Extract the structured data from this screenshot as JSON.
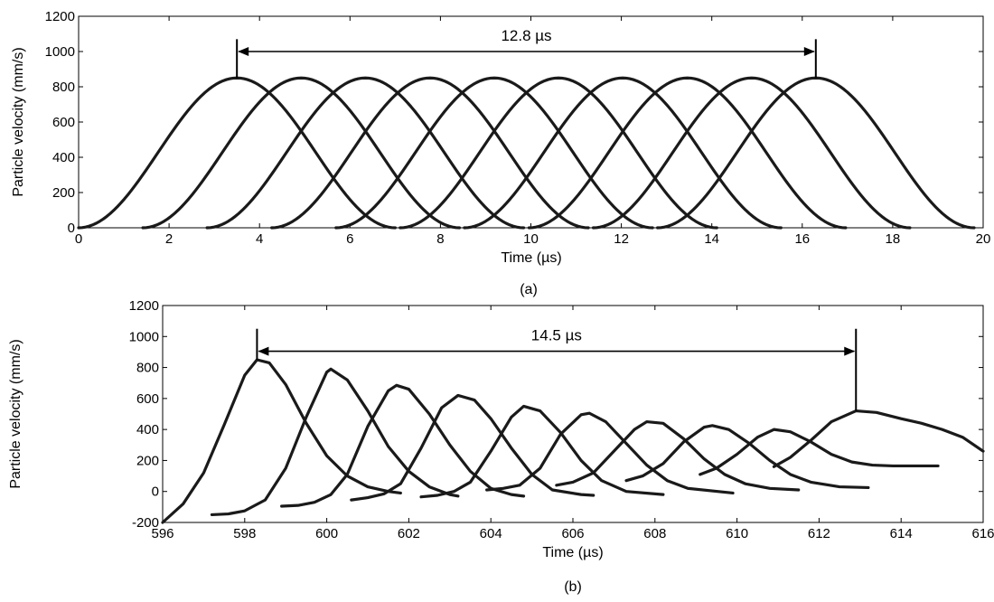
{
  "chart_data": [
    {
      "type": "line",
      "caption": "(a)",
      "xlabel": "Time (µs)",
      "ylabel": "Particle velocity (mm/s)",
      "xlim": [
        0,
        20
      ],
      "ylim": [
        0,
        1200
      ],
      "xticks": [
        0,
        2,
        4,
        6,
        8,
        10,
        12,
        14,
        16,
        18,
        20
      ],
      "yticks": [
        0,
        200,
        400,
        600,
        800,
        1000,
        1200
      ],
      "grid": false,
      "pulse_shape": "hann",
      "series": [
        {
          "peak_time": 3.5,
          "peak_value": 850,
          "start": 0.0,
          "end": 7.0
        },
        {
          "peak_time": 4.92,
          "peak_value": 850,
          "start": 1.42,
          "end": 8.42
        },
        {
          "peak_time": 6.34,
          "peak_value": 850,
          "start": 2.84,
          "end": 9.84
        },
        {
          "peak_time": 7.77,
          "peak_value": 850,
          "start": 4.27,
          "end": 11.27
        },
        {
          "peak_time": 9.19,
          "peak_value": 850,
          "start": 5.69,
          "end": 12.69
        },
        {
          "peak_time": 10.61,
          "peak_value": 850,
          "start": 7.11,
          "end": 14.11
        },
        {
          "peak_time": 12.03,
          "peak_value": 850,
          "start": 8.53,
          "end": 15.53
        },
        {
          "peak_time": 13.46,
          "peak_value": 850,
          "start": 9.96,
          "end": 16.96
        },
        {
          "peak_time": 14.88,
          "peak_value": 850,
          "start": 11.38,
          "end": 18.38
        },
        {
          "peak_time": 16.3,
          "peak_value": 850,
          "start": 12.8,
          "end": 19.8
        }
      ],
      "annotation": {
        "text": "12.8 µs",
        "from": 3.5,
        "to": 16.3,
        "y": 1000,
        "tick_top": 1070
      }
    },
    {
      "type": "line",
      "caption": "(b)",
      "xlabel": "Time (µs)",
      "ylabel": "Particle velocity (mm/s)",
      "xlim": [
        596,
        616
      ],
      "ylim": [
        -200,
        1200
      ],
      "xticks": [
        596,
        598,
        600,
        602,
        604,
        606,
        608,
        610,
        612,
        614,
        616
      ],
      "yticks": [
        -200,
        0,
        200,
        400,
        600,
        800,
        1000,
        1200
      ],
      "grid": false,
      "series": [
        {
          "points": [
            [
              596,
              -200
            ],
            [
              596.5,
              -80
            ],
            [
              597,
              120
            ],
            [
              597.5,
              430
            ],
            [
              598,
              750
            ],
            [
              598.3,
              850
            ],
            [
              598.6,
              830
            ],
            [
              599,
              690
            ],
            [
              599.5,
              440
            ],
            [
              600,
              230
            ],
            [
              600.5,
              100
            ],
            [
              601,
              30
            ],
            [
              601.5,
              0
            ],
            [
              601.8,
              -10
            ]
          ]
        },
        {
          "points": [
            [
              597.2,
              -150
            ],
            [
              597.6,
              -145
            ],
            [
              598,
              -125
            ],
            [
              598.5,
              -55
            ],
            [
              599,
              150
            ],
            [
              599.5,
              480
            ],
            [
              600,
              770
            ],
            [
              600.1,
              790
            ],
            [
              600.5,
              720
            ],
            [
              601,
              520
            ],
            [
              601.5,
              290
            ],
            [
              602,
              130
            ],
            [
              602.5,
              30
            ],
            [
              603,
              -20
            ],
            [
              603.2,
              -30
            ]
          ]
        },
        {
          "points": [
            [
              598.9,
              -95
            ],
            [
              599.3,
              -90
            ],
            [
              599.7,
              -70
            ],
            [
              600.1,
              -20
            ],
            [
              600.5,
              110
            ],
            [
              601,
              420
            ],
            [
              601.5,
              650
            ],
            [
              601.7,
              685
            ],
            [
              602,
              660
            ],
            [
              602.5,
              500
            ],
            [
              603,
              300
            ],
            [
              603.5,
              130
            ],
            [
              604,
              20
            ],
            [
              604.5,
              -20
            ],
            [
              604.8,
              -30
            ]
          ]
        },
        {
          "points": [
            [
              600.6,
              -55
            ],
            [
              601,
              -40
            ],
            [
              601.4,
              -15
            ],
            [
              601.8,
              50
            ],
            [
              602.3,
              280
            ],
            [
              602.8,
              540
            ],
            [
              603.2,
              620
            ],
            [
              603.6,
              590
            ],
            [
              604,
              470
            ],
            [
              604.5,
              280
            ],
            [
              605,
              110
            ],
            [
              605.5,
              10
            ],
            [
              606.2,
              -20
            ],
            [
              606.5,
              -25
            ]
          ]
        },
        {
          "points": [
            [
              602.3,
              -35
            ],
            [
              602.7,
              -25
            ],
            [
              603.1,
              0
            ],
            [
              603.5,
              60
            ],
            [
              604,
              260
            ],
            [
              604.5,
              480
            ],
            [
              604.8,
              550
            ],
            [
              605.2,
              520
            ],
            [
              605.7,
              380
            ],
            [
              606.2,
              200
            ],
            [
              606.7,
              70
            ],
            [
              607.3,
              0
            ],
            [
              608.2,
              -20
            ]
          ]
        },
        {
          "points": [
            [
              603.9,
              10
            ],
            [
              604.3,
              20
            ],
            [
              604.7,
              40
            ],
            [
              605.2,
              150
            ],
            [
              605.7,
              370
            ],
            [
              606.2,
              495
            ],
            [
              606.4,
              505
            ],
            [
              606.8,
              450
            ],
            [
              607.3,
              310
            ],
            [
              607.8,
              170
            ],
            [
              608.3,
              70
            ],
            [
              608.8,
              20
            ],
            [
              609.9,
              -10
            ]
          ]
        },
        {
          "points": [
            [
              605.6,
              40
            ],
            [
              606,
              60
            ],
            [
              606.5,
              120
            ],
            [
              607,
              260
            ],
            [
              607.5,
              400
            ],
            [
              607.8,
              450
            ],
            [
              608.2,
              440
            ],
            [
              608.7,
              340
            ],
            [
              609.2,
              210
            ],
            [
              609.7,
              110
            ],
            [
              610.2,
              50
            ],
            [
              610.8,
              20
            ],
            [
              611.5,
              10
            ]
          ]
        },
        {
          "points": [
            [
              607.3,
              70
            ],
            [
              607.7,
              100
            ],
            [
              608.2,
              180
            ],
            [
              608.7,
              320
            ],
            [
              609.2,
              415
            ],
            [
              609.4,
              425
            ],
            [
              609.8,
              400
            ],
            [
              610.3,
              310
            ],
            [
              610.8,
              200
            ],
            [
              611.3,
              110
            ],
            [
              611.8,
              60
            ],
            [
              612.5,
              30
            ],
            [
              613.2,
              25
            ]
          ]
        },
        {
          "points": [
            [
              609.1,
              110
            ],
            [
              609.5,
              150
            ],
            [
              610,
              240
            ],
            [
              610.5,
              350
            ],
            [
              610.9,
              400
            ],
            [
              611.3,
              385
            ],
            [
              611.8,
              320
            ],
            [
              612.3,
              240
            ],
            [
              612.8,
              190
            ],
            [
              613.3,
              170
            ],
            [
              613.8,
              165
            ],
            [
              614.3,
              165
            ],
            [
              614.9,
              165
            ]
          ]
        },
        {
          "points": [
            [
              610.9,
              160
            ],
            [
              611.3,
              220
            ],
            [
              611.8,
              330
            ],
            [
              612.3,
              450
            ],
            [
              612.9,
              520
            ],
            [
              613.4,
              510
            ],
            [
              614,
              470
            ],
            [
              614.5,
              440
            ],
            [
              615,
              400
            ],
            [
              615.5,
              350
            ],
            [
              616,
              260
            ]
          ]
        }
      ],
      "annotation": {
        "text": "14.5 µs",
        "from": 598.3,
        "to": 612.9,
        "y": 905,
        "tick_top": 1050
      }
    }
  ]
}
